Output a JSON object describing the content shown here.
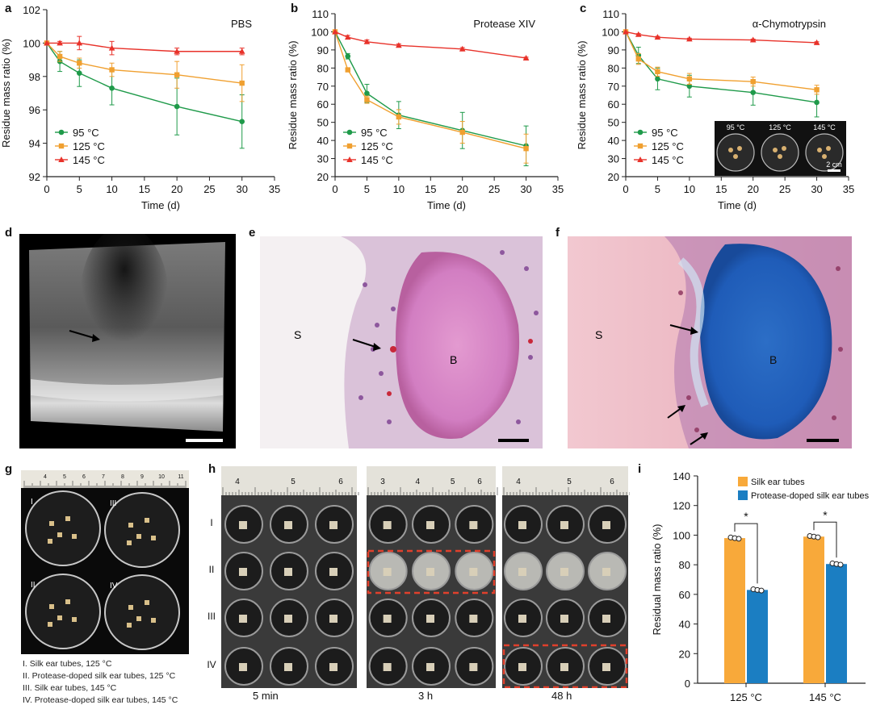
{
  "colors": {
    "s95": "#1f9a4a",
    "s125": "#f0a030",
    "s145": "#e8322a",
    "bar_silk": "#f8a93a",
    "bar_protease": "#1b7ec2",
    "dash": "#e0402c"
  },
  "panel_labels": {
    "a": "a",
    "b": "b",
    "c": "c",
    "d": "d",
    "e": "e",
    "f": "f",
    "g": "g",
    "h": "h",
    "i": "i"
  },
  "line_charts": [
    {
      "id": "a",
      "title": "PBS",
      "ylabel": "Residue mass ratio (%)",
      "xlabel": "Time (d)",
      "ylim": [
        92,
        102
      ],
      "yticks": [
        92,
        94,
        96,
        98,
        100,
        102
      ],
      "xlim": [
        0,
        35
      ],
      "xticks": [
        0,
        5,
        10,
        15,
        20,
        25,
        30,
        35
      ],
      "legend": [
        "95 °C",
        "125 °C",
        "145 °C"
      ],
      "x": [
        0,
        2,
        5,
        10,
        20,
        30
      ],
      "series": [
        {
          "name": "95 °C",
          "values": [
            100,
            98.9,
            98.2,
            97.3,
            96.2,
            95.3
          ],
          "err": [
            0,
            0.6,
            0.8,
            1.0,
            1.7,
            1.6
          ]
        },
        {
          "name": "125 °C",
          "values": [
            100,
            99.2,
            98.8,
            98.4,
            98.1,
            97.6
          ],
          "err": [
            0,
            0.3,
            0.3,
            0.4,
            0.8,
            1.1
          ]
        },
        {
          "name": "145 °C",
          "values": [
            100,
            100.0,
            100.0,
            99.7,
            99.5,
            99.5
          ],
          "err": [
            0,
            0.1,
            0.4,
            0.4,
            0.2,
            0.2
          ]
        }
      ]
    },
    {
      "id": "b",
      "title": "Protease XIV",
      "ylabel": "Residue mass ratio (%)",
      "xlabel": "Time (d)",
      "ylim": [
        20,
        110
      ],
      "yticks": [
        20,
        30,
        40,
        50,
        60,
        70,
        80,
        90,
        100,
        110
      ],
      "xlim": [
        0,
        35
      ],
      "xticks": [
        0,
        5,
        10,
        15,
        20,
        25,
        30,
        35
      ],
      "legend": [
        "95 °C",
        "125 °C",
        "145 °C"
      ],
      "x": [
        0,
        2,
        5,
        10,
        20,
        30
      ],
      "series": [
        {
          "name": "95 °C",
          "values": [
            100,
            86.5,
            66,
            54,
            45.5,
            37
          ],
          "err": [
            0,
            1.5,
            5,
            7.5,
            10,
            11
          ]
        },
        {
          "name": "125 °C",
          "values": [
            100,
            79,
            62.5,
            53,
            44.5,
            35.5
          ],
          "err": [
            0,
            1,
            2,
            4,
            6,
            8
          ]
        },
        {
          "name": "145 °C",
          "values": [
            100,
            97,
            94.5,
            92.5,
            90.5,
            85.5
          ],
          "err": [
            0,
            1,
            1,
            0.8,
            0.8,
            0.5
          ]
        }
      ]
    },
    {
      "id": "c",
      "title": "α-Chymotrypsin",
      "ylabel": "Residue mass ratio (%)",
      "xlabel": "Time (d)",
      "ylim": [
        20,
        110
      ],
      "yticks": [
        20,
        30,
        40,
        50,
        60,
        70,
        80,
        90,
        100,
        110
      ],
      "xlim": [
        0,
        35
      ],
      "xticks": [
        0,
        5,
        10,
        15,
        20,
        25,
        30,
        35
      ],
      "legend": [
        "95 °C",
        "125 °C",
        "145 °C"
      ],
      "x": [
        0,
        2,
        5,
        10,
        20,
        30
      ],
      "series": [
        {
          "name": "95 °C",
          "values": [
            100,
            87,
            74,
            70,
            66.5,
            61
          ],
          "err": [
            0,
            4.5,
            6,
            6,
            7,
            8
          ]
        },
        {
          "name": "125 °C",
          "values": [
            100,
            85,
            78,
            74,
            72.5,
            68
          ],
          "err": [
            0,
            3,
            2.5,
            3,
            2.5,
            2.5
          ]
        },
        {
          "name": "145 °C",
          "values": [
            100,
            98.5,
            97,
            96,
            95.5,
            94
          ],
          "err": [
            0,
            0.5,
            0.5,
            0.5,
            0.5,
            0.5
          ]
        }
      ],
      "inset": {
        "labels": [
          "95 °C",
          "125 °C",
          "145 °C"
        ],
        "scale": "2 cm"
      }
    }
  ],
  "chart_data": {
    "type": "bar",
    "categories": [
      "125 °C",
      "145 °C"
    ],
    "series": [
      {
        "name": "Silk ear tubes",
        "values": [
          98,
          99
        ]
      },
      {
        "name": "Protease-doped silk ear tubes",
        "values": [
          63,
          80.5
        ]
      }
    ],
    "ylabel": "Residual mass ratio (%)",
    "ylim": [
      0,
      140
    ],
    "yticks": [
      0,
      20,
      40,
      60,
      80,
      100,
      120,
      140
    ],
    "significance": [
      "*",
      "*"
    ],
    "legend": "top-right"
  },
  "micrographs": {
    "d_arrow": "arrow",
    "e_labels": {
      "s": "S",
      "b": "B"
    },
    "f_labels": {
      "s": "S",
      "b": "B"
    }
  },
  "panel_g": {
    "dish_labels": [
      "I",
      "III",
      "II",
      "IV"
    ],
    "ruler_numbers": [
      "4",
      "5",
      "6",
      "7",
      "8",
      "9",
      "10",
      "11"
    ],
    "captions": [
      "I.   Silk ear tubes, 125 °C",
      "II.  Protease-doped silk ear tubes, 125 °C",
      "III. Silk ear tubes, 145 °C",
      "IV. Protease-doped silk ear tubes, 145 °C"
    ]
  },
  "panel_h": {
    "row_labels": [
      "I",
      "II",
      "III",
      "IV"
    ],
    "times": [
      "5 min",
      "3 h",
      "48 h"
    ],
    "rulers": [
      [
        "4",
        "5",
        "6"
      ],
      [
        "3",
        "4",
        "5",
        "6"
      ],
      [
        "4",
        "5",
        "6"
      ]
    ]
  }
}
